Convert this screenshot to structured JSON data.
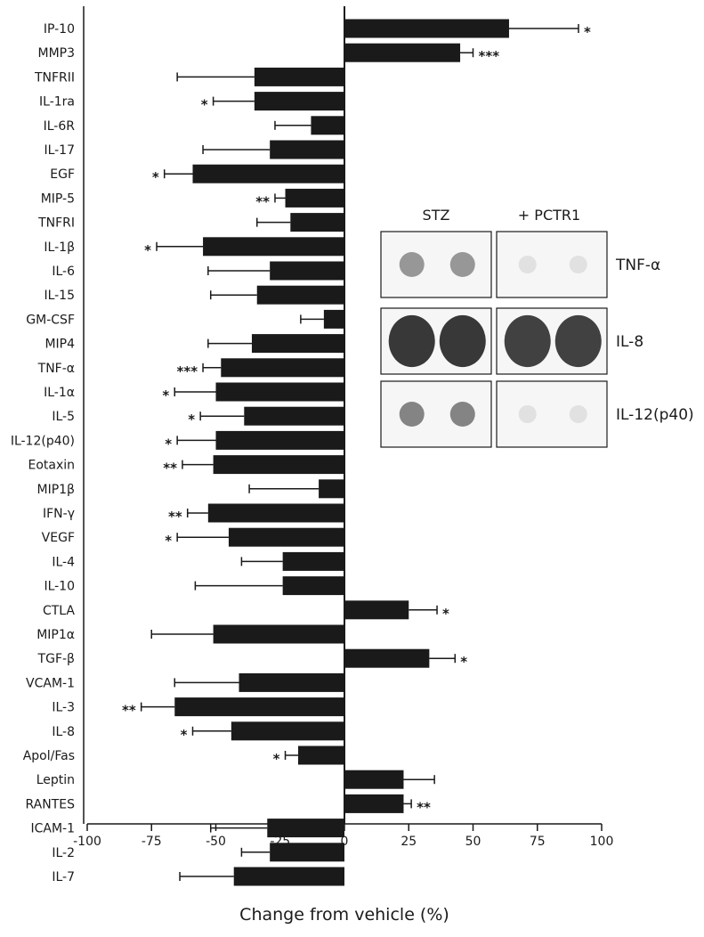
{
  "chart_data": {
    "type": "bar",
    "orientation": "horizontal",
    "title": "",
    "xlabel": "Change from vehicle (%)",
    "ylabel": "",
    "xlim": [
      -100,
      100
    ],
    "xticks": [
      -100,
      -75,
      -50,
      -25,
      0,
      25,
      50,
      75,
      100
    ],
    "xtick_labels": [
      "-100",
      "-75",
      "-50",
      "-25",
      "0",
      "25",
      "50",
      "75",
      "100"
    ],
    "grid": false,
    "legend": "none",
    "bar_color": "#1a1a1a",
    "categories": [
      "IP-10",
      "MMP3",
      "TNFRII",
      "IL-1ra",
      "IL-6R",
      "IL-17",
      "EGF",
      "MIP-5",
      "TNFRI",
      "IL-1β",
      "IL-6",
      "IL-15",
      "GM-CSF",
      "MIP4",
      "TNF-α",
      "IL-1α",
      "IL-5",
      "IL-12(p40)",
      "Eotaxin",
      "MIP1β",
      "IFN-γ",
      "VEGF",
      "IL-4",
      "IL-10",
      "CTLA",
      "MIP1α",
      "TGF-β",
      "VCAM-1",
      "IL-3",
      "IL-8",
      "Apol/Fas",
      "Leptin",
      "RANTES",
      "ICAM-1",
      "IL-2",
      "IL-7"
    ],
    "values": [
      64,
      45,
      -35,
      -35,
      -13,
      -29,
      -59,
      -23,
      -21,
      -55,
      -29,
      -34,
      -8,
      -36,
      -48,
      -50,
      -39,
      -50,
      -51,
      -10,
      -53,
      -45,
      -24,
      -24,
      25,
      -51,
      33,
      -41,
      -66,
      -44,
      -18,
      23,
      23,
      -30,
      -29,
      -43
    ],
    "errors": [
      27,
      5,
      30,
      16,
      14,
      26,
      11,
      4,
      13,
      18,
      24,
      18,
      9,
      17,
      7,
      16,
      17,
      15,
      12,
      27,
      8,
      20,
      16,
      34,
      11,
      24,
      10,
      25,
      13,
      15,
      5,
      12,
      3,
      22,
      11,
      21
    ],
    "significance": [
      "*",
      "***",
      "",
      "*",
      "",
      "",
      "*",
      "**",
      "",
      "*",
      "",
      "",
      "",
      "",
      "***",
      "*",
      "*",
      "*",
      "**",
      "",
      "**",
      "*",
      "",
      "",
      "*",
      "",
      "*",
      "",
      "**",
      "*",
      "*",
      "",
      "**",
      "",
      "",
      ""
    ]
  },
  "inset": {
    "column_headers": [
      "STZ",
      "+ PCTR1"
    ],
    "rows": [
      {
        "label": "TNF-α",
        "stz_intensity": 0.45,
        "pctr1_intensity": 0.06
      },
      {
        "label": "IL-8",
        "stz_intensity": 0.95,
        "pctr1_intensity": 0.9
      },
      {
        "label": "IL-12(p40)",
        "stz_intensity": 0.55,
        "pctr1_intensity": 0.06
      }
    ]
  }
}
